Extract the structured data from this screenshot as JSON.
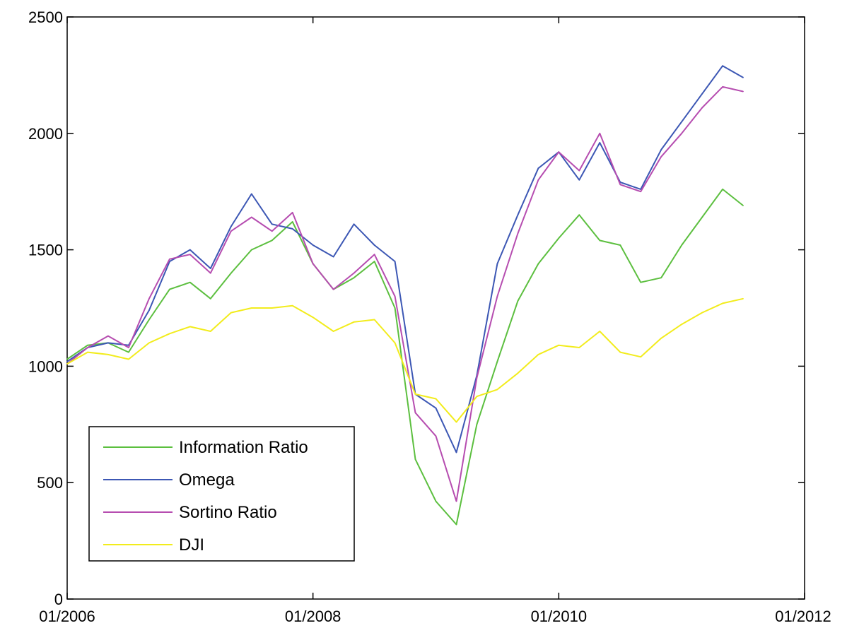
{
  "chart_data": {
    "type": "line",
    "title": "",
    "xlabel": "",
    "ylabel": "",
    "xlim": [
      "2006-01",
      "2012-01"
    ],
    "ylim": [
      0,
      2500
    ],
    "x_ticks": [
      "01/2006",
      "01/2008",
      "01/2010",
      "01/2012"
    ],
    "y_ticks": [
      "0",
      "500",
      "1000",
      "1500",
      "2000",
      "2500"
    ],
    "grid": false,
    "legend_position": "lower-left",
    "x": [
      "2006-01",
      "2006-03",
      "2006-05",
      "2006-07",
      "2006-09",
      "2006-11",
      "2007-01",
      "2007-03",
      "2007-05",
      "2007-07",
      "2007-09",
      "2007-11",
      "2008-01",
      "2008-03",
      "2008-05",
      "2008-07",
      "2008-09",
      "2008-11",
      "2009-01",
      "2009-03",
      "2009-05",
      "2009-07",
      "2009-09",
      "2009-11",
      "2010-01",
      "2010-03",
      "2010-05",
      "2010-07",
      "2010-09",
      "2010-11",
      "2011-01",
      "2011-03",
      "2011-05",
      "2011-07"
    ],
    "series": [
      {
        "name": "Information Ratio",
        "color": "#5cbf3f",
        "values": [
          1030,
          1090,
          1100,
          1060,
          1200,
          1330,
          1360,
          1290,
          1400,
          1500,
          1540,
          1620,
          1440,
          1330,
          1380,
          1450,
          1250,
          600,
          420,
          320,
          750,
          1020,
          1280,
          1440,
          1550,
          1650,
          1540,
          1520,
          1360,
          1380,
          1520,
          1640,
          1760,
          1690
        ]
      },
      {
        "name": "Omega",
        "color": "#3c57b4",
        "values": [
          1020,
          1080,
          1100,
          1090,
          1240,
          1450,
          1500,
          1420,
          1600,
          1740,
          1610,
          1590,
          1520,
          1470,
          1610,
          1520,
          1450,
          880,
          820,
          630,
          960,
          1440,
          1650,
          1850,
          1920,
          1800,
          1960,
          1790,
          1760,
          1930,
          2050,
          2170,
          2290,
          2240
        ]
      },
      {
        "name": "Sortino Ratio",
        "color": "#b64db0",
        "values": [
          1010,
          1080,
          1130,
          1080,
          1290,
          1460,
          1480,
          1400,
          1580,
          1640,
          1580,
          1660,
          1440,
          1330,
          1400,
          1480,
          1300,
          800,
          700,
          420,
          950,
          1300,
          1570,
          1800,
          1920,
          1840,
          2000,
          1780,
          1750,
          1900,
          2000,
          2110,
          2200,
          2180
        ]
      },
      {
        "name": "DJI",
        "color": "#f2ec1c",
        "values": [
          1010,
          1060,
          1050,
          1030,
          1100,
          1140,
          1170,
          1150,
          1230,
          1250,
          1250,
          1260,
          1210,
          1150,
          1190,
          1200,
          1100,
          880,
          860,
          760,
          870,
          900,
          970,
          1050,
          1090,
          1080,
          1150,
          1060,
          1040,
          1120,
          1180,
          1230,
          1270,
          1290
        ]
      }
    ]
  }
}
